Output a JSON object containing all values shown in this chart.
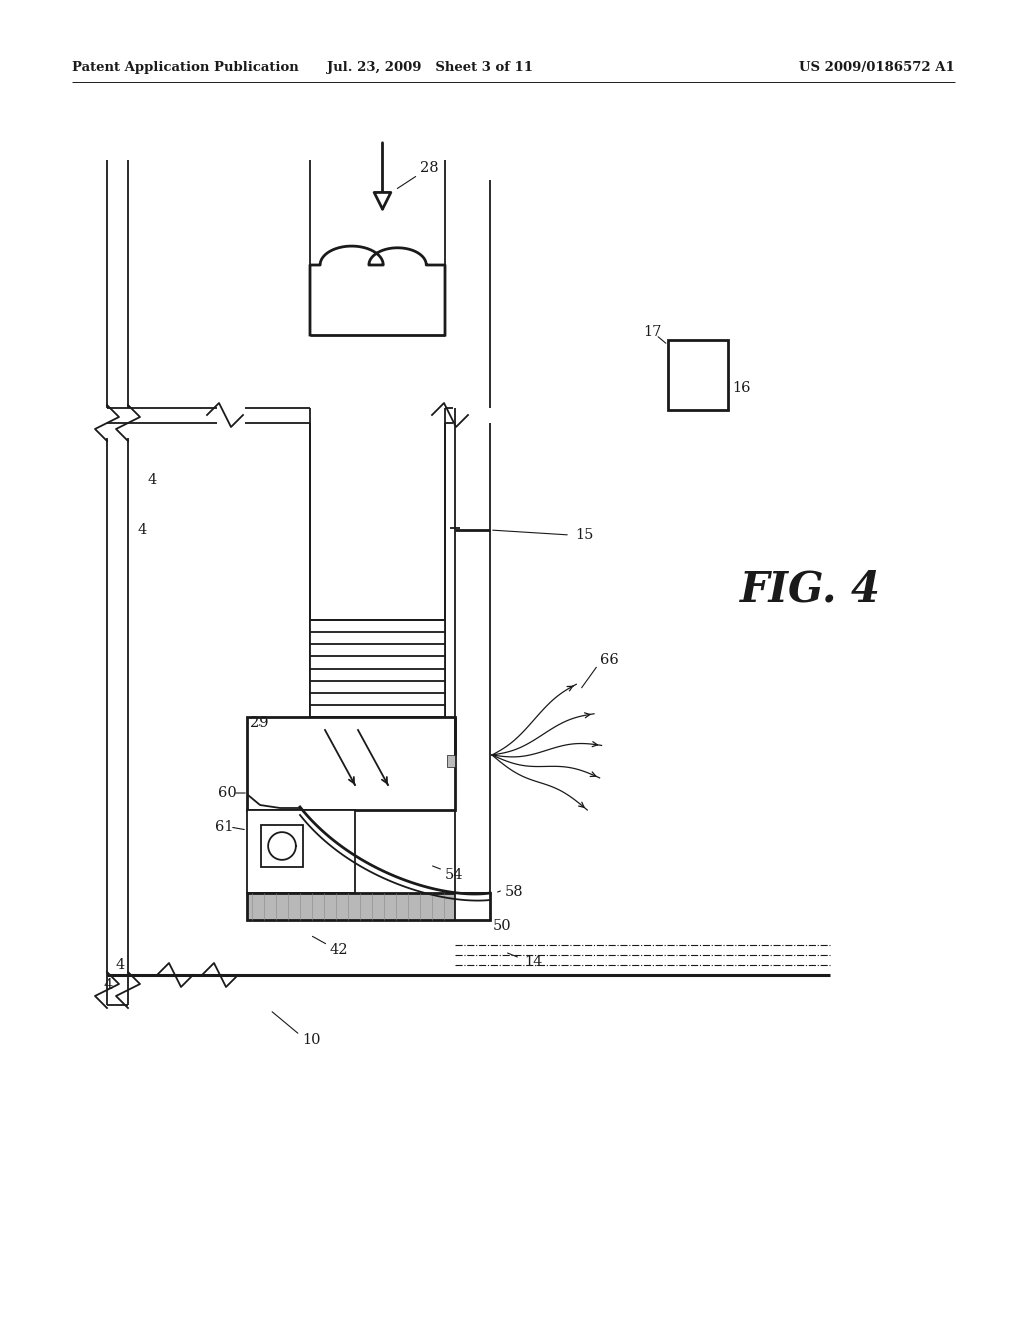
{
  "bg_color": "#ffffff",
  "lc": "#1a1a1a",
  "header_left": "Patent Application Publication",
  "header_mid": "Jul. 23, 2009   Sheet 3 of 11",
  "header_right": "US 2009/0186572 A1",
  "fig_label": "FIG. 4"
}
